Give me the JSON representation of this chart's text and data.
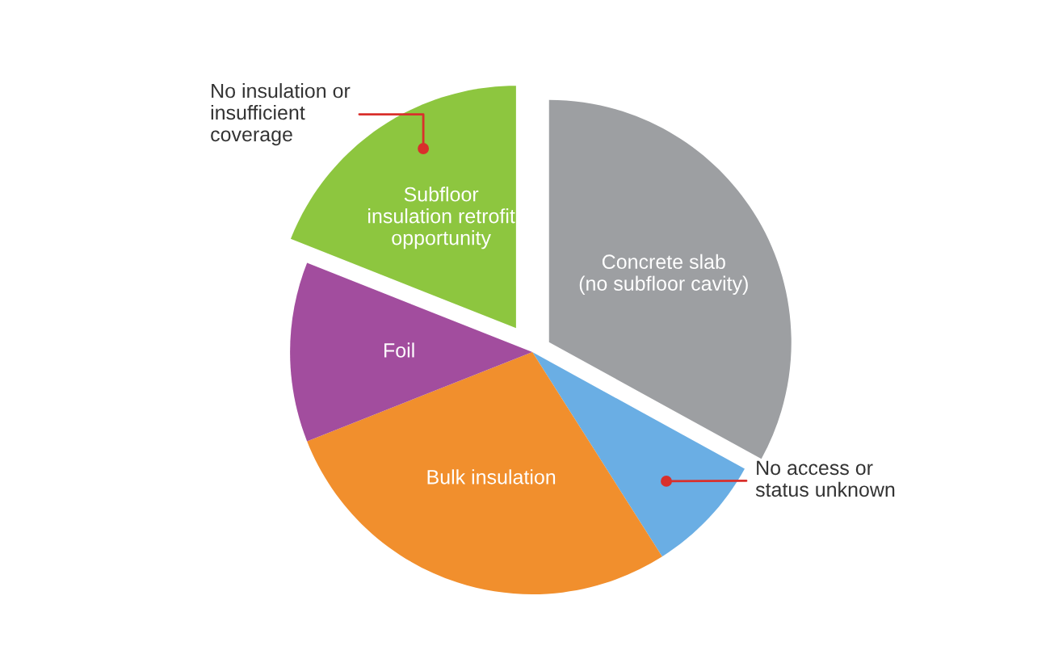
{
  "chart_data": {
    "type": "pie",
    "categories": [
      "Concrete slab\n(no subfloor cavity)",
      null,
      "Bulk insulation",
      "Foil",
      "Subfloor\ninsulation retrofit\nopportunity"
    ],
    "values": [
      33,
      8,
      28,
      12,
      19
    ],
    "colors": [
      "#9d9fa2",
      "#6aaee4",
      "#f18f2d",
      "#a24d9e",
      "#8dc63f"
    ],
    "annotations": [
      "No insulation or\ninsufficient\ncoverage",
      "No access or\nstatus unknown"
    ],
    "legend": false
  }
}
